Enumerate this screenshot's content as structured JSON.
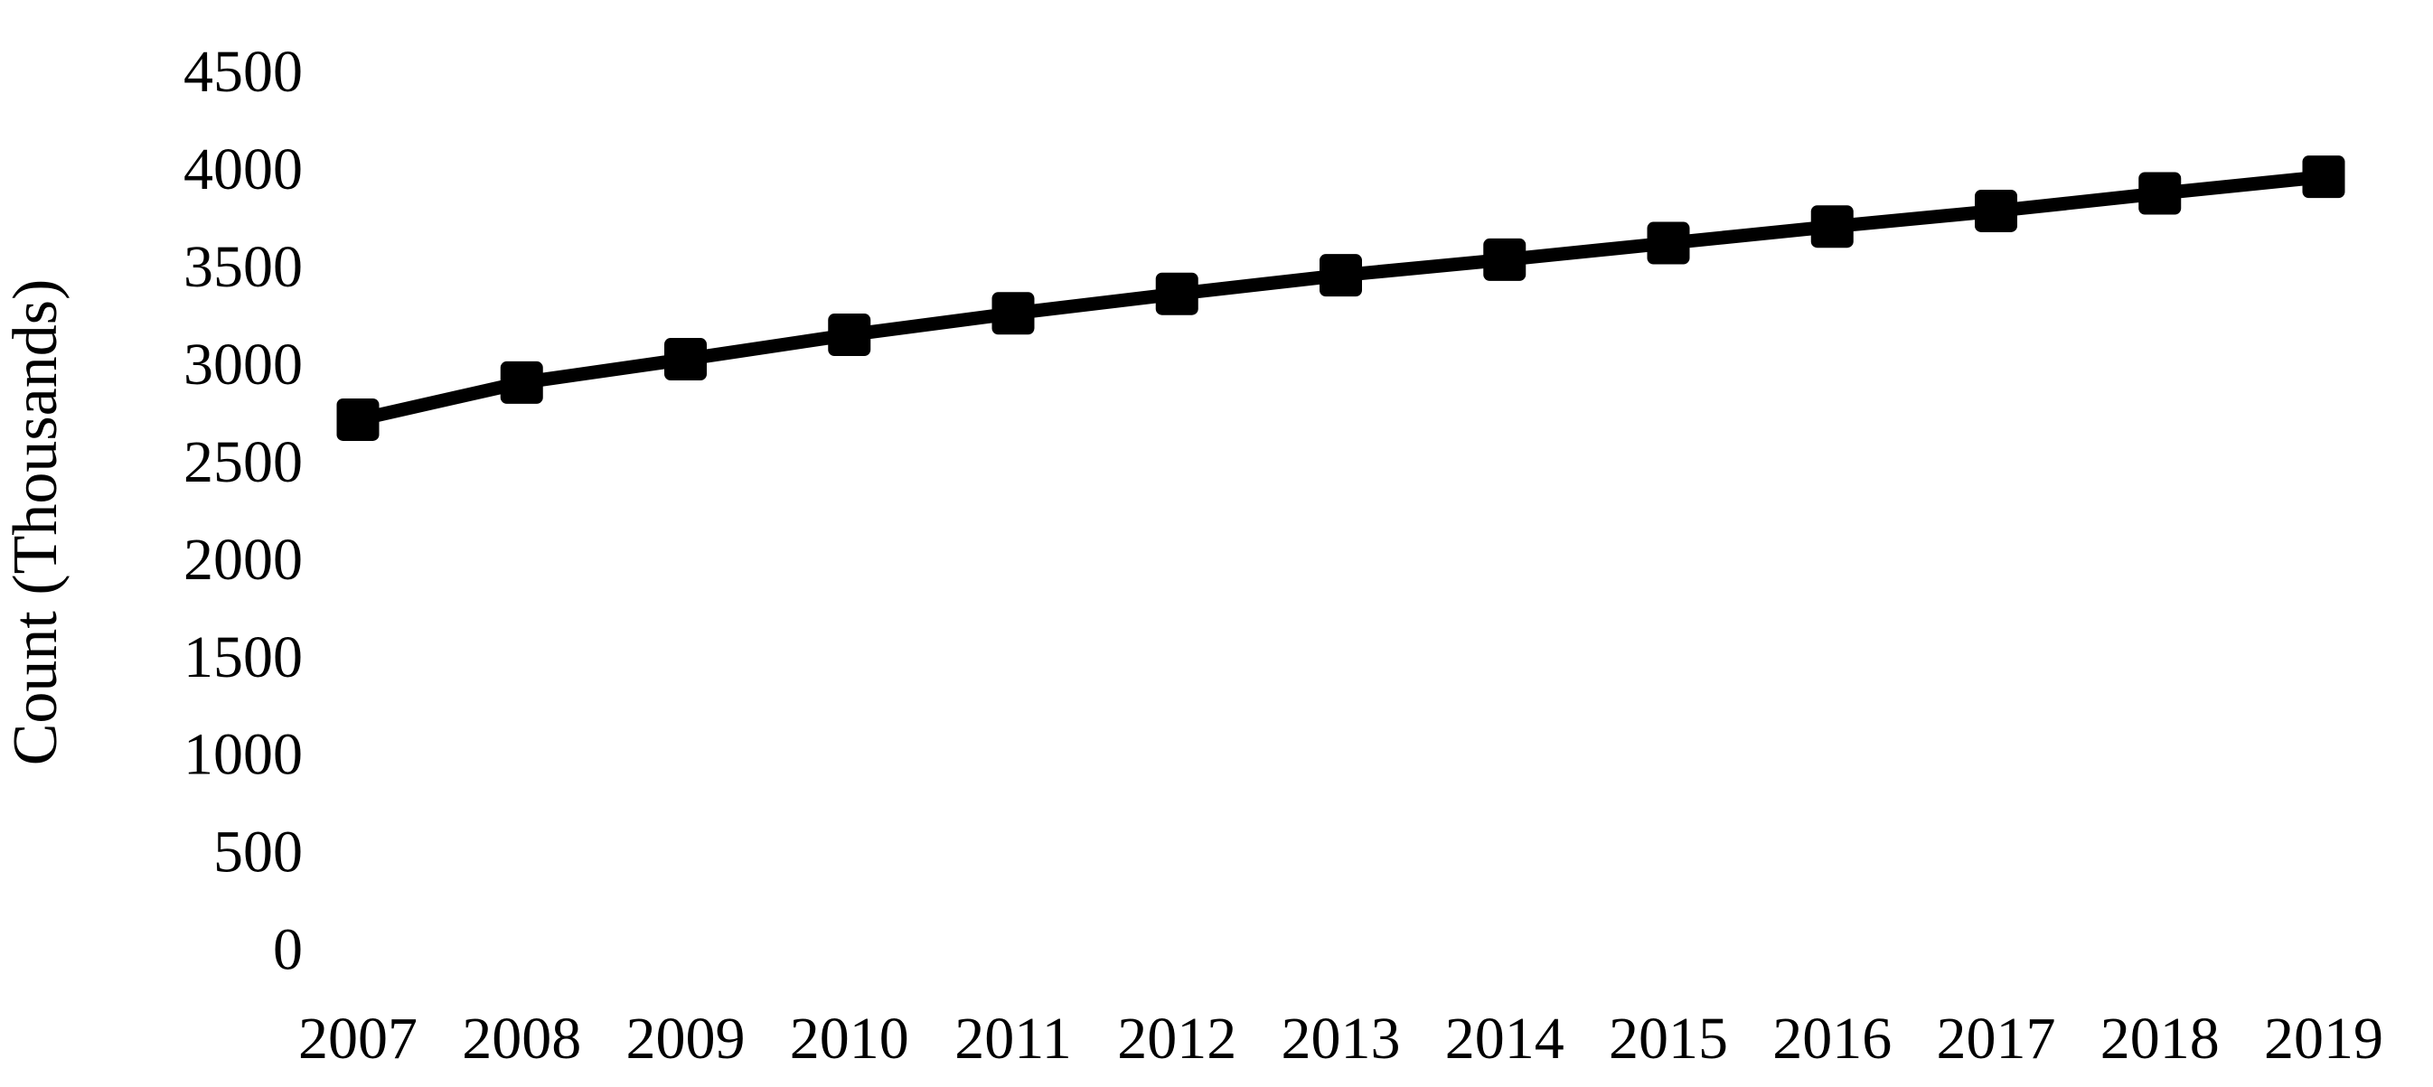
{
  "chart_data": {
    "type": "line",
    "title": "",
    "xlabel": "",
    "ylabel": "Count (Thousands)",
    "categories": [
      "2007",
      "2008",
      "2009",
      "2010",
      "2011",
      "2012",
      "2013",
      "2014",
      "2015",
      "2016",
      "2017",
      "2018",
      "2019"
    ],
    "series": [
      {
        "name": "Count",
        "values": [
          2710,
          2900,
          3020,
          3145,
          3255,
          3355,
          3450,
          3530,
          3615,
          3700,
          3780,
          3870,
          3955
        ]
      }
    ],
    "ylim": [
      0,
      4500
    ],
    "yticks": [
      0,
      500,
      1000,
      1500,
      2000,
      2500,
      3000,
      3500,
      4000,
      4500
    ],
    "grid": false,
    "legend": "none",
    "line_color": "#000000",
    "marker_shape": "square",
    "marker_color": "#000000",
    "text_color": "#000000",
    "background_color": "#ffffff"
  }
}
